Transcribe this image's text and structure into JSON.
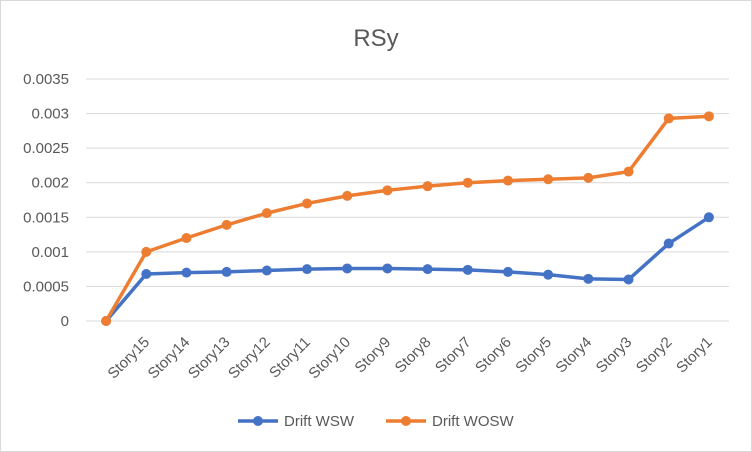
{
  "chart_data": {
    "type": "line",
    "title": "RSy",
    "xlabel": "",
    "ylabel": "",
    "categories": [
      "",
      "Story15",
      "Story14",
      "Story13",
      "Story12",
      "Story11",
      "Story10",
      "Story9",
      "Story8",
      "Story7",
      "Story6",
      "Story5",
      "Story4",
      "Story3",
      "Story2",
      "Story1"
    ],
    "ylim": [
      0,
      0.0035
    ],
    "yticks": [
      "0",
      "0.0005",
      "0.001",
      "0.0015",
      "0.002",
      "0.0025",
      "0.003",
      "0.0035"
    ],
    "grid": true,
    "legend_position": "bottom",
    "series": [
      {
        "name": "Drift WSW",
        "color": "#4472c4",
        "values": [
          0,
          0.00068,
          0.0007,
          0.00071,
          0.00073,
          0.00075,
          0.00076,
          0.00076,
          0.00075,
          0.00074,
          0.00071,
          0.00067,
          0.00061,
          0.0006,
          0.00112,
          0.0015
        ]
      },
      {
        "name": "Drift WOSW",
        "color": "#ed7d31",
        "values": [
          0,
          0.001,
          0.0012,
          0.00139,
          0.00156,
          0.0017,
          0.00181,
          0.00189,
          0.00195,
          0.002,
          0.00203,
          0.00205,
          0.00207,
          0.00216,
          0.00293,
          0.00296
        ]
      }
    ]
  }
}
